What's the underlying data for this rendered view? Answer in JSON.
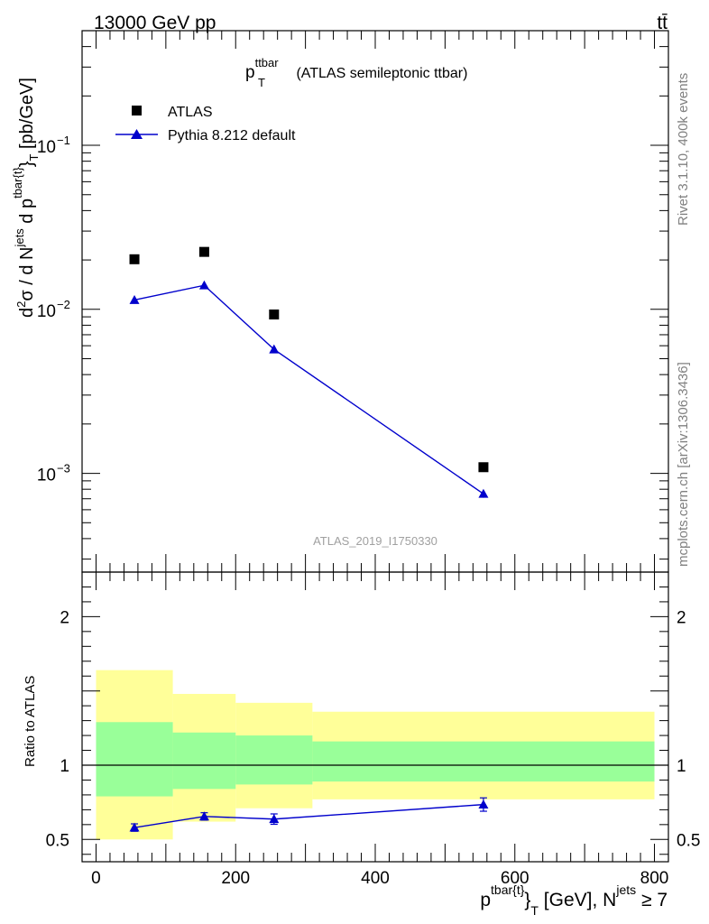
{
  "header": {
    "left_label": "13000 GeV pp",
    "right_label": "tt̄"
  },
  "side_text": {
    "rivet": "Rivet 3.1.10,  400k events",
    "mcplots": "mcplots.cern.ch [arXiv:1306.3436]"
  },
  "chart_data": [
    {
      "type": "scatter",
      "panel": "main",
      "title": "p_T^ttbar (ATLAS semileptonic ttbar)",
      "title_main": "p",
      "title_sub": "T",
      "title_sup": "ttbar",
      "title_rest": " (ATLAS semileptonic ttbar)",
      "ylabel": "d²σ / d N^jets d p^tbar{t}_T [pb/GeV]",
      "ylabel_parts": {
        "d2": "d",
        "exp2": "2",
        "sigma": "σ  /  d N",
        "jets": "jets",
        "dp": " d p",
        "tbar": "tbar{t}",
        "close": "}",
        "T": "T",
        "unit": " [pb/GeV]"
      },
      "yscale": "log",
      "xlim": [
        -20,
        820
      ],
      "ylim": [
        0.00025,
        0.5
      ],
      "yticks": [
        {
          "value": 0.1,
          "base": "10",
          "exp": "−1"
        },
        {
          "value": 0.01,
          "base": "10",
          "exp": "−2"
        },
        {
          "value": 0.001,
          "base": "10",
          "exp": "−3"
        }
      ],
      "watermark": "ATLAS_2019_I1750330",
      "legend": {
        "position": "top-left",
        "entries": [
          "ATLAS",
          "Pythia 8.212 default"
        ]
      },
      "series": [
        {
          "name": "ATLAS",
          "marker": "square",
          "color": "#000000",
          "x": [
            55,
            155,
            255,
            555
          ],
          "y": [
            0.0202,
            0.0224,
            0.0093,
            0.00109
          ]
        },
        {
          "name": "Pythia 8.212 default",
          "marker": "triangle",
          "color": "#0000cc",
          "line": true,
          "x": [
            55,
            155,
            255,
            555
          ],
          "y": [
            0.0114,
            0.014,
            0.0057,
            0.00075
          ],
          "yerr": [
            0.0002,
            0.0003,
            0.00015,
            4e-05
          ]
        }
      ]
    },
    {
      "type": "scatter",
      "panel": "ratio",
      "ylabel": "Ratio to ATLAS",
      "xlabel": "p^tbar{t}_T [GeV], N^jets ≥ 7",
      "xlabel_parts": {
        "p": "p",
        "tbar": "tbar{t}",
        "close": "}",
        "T": "T",
        "unit": " [GeV], N",
        "jets": "jets",
        "cond": " ≥ 7"
      },
      "xlim": [
        -20,
        820
      ],
      "ylim": [
        0.35,
        2.3
      ],
      "xticks": [
        0,
        200,
        400,
        600,
        800
      ],
      "yticks": [
        {
          "value": 0.5,
          "label": "0.5"
        },
        {
          "value": 1,
          "label": "1"
        },
        {
          "value": 2,
          "label": "2"
        }
      ],
      "reference_line": 1,
      "bands": [
        {
          "xlo": 0,
          "xhi": 110,
          "inner": [
            0.79,
            1.29
          ],
          "outer": [
            0.5,
            1.64
          ]
        },
        {
          "xlo": 110,
          "xhi": 200,
          "inner": [
            0.84,
            1.22
          ],
          "outer": [
            0.62,
            1.48
          ]
        },
        {
          "xlo": 200,
          "xhi": 310,
          "inner": [
            0.87,
            1.2
          ],
          "outer": [
            0.71,
            1.42
          ]
        },
        {
          "xlo": 310,
          "xhi": 800,
          "inner": [
            0.89,
            1.16
          ],
          "outer": [
            0.77,
            1.36
          ]
        }
      ],
      "band_colors": {
        "inner": "#99ff99",
        "outer": "#ffff99"
      },
      "series": [
        {
          "name": "Pythia 8.212 default",
          "marker": "triangle",
          "color": "#0000cc",
          "line": true,
          "x": [
            55,
            155,
            255,
            555
          ],
          "y": [
            0.58,
            0.655,
            0.637,
            0.735
          ],
          "yerr": [
            0.025,
            0.025,
            0.035,
            0.045
          ]
        }
      ]
    }
  ]
}
